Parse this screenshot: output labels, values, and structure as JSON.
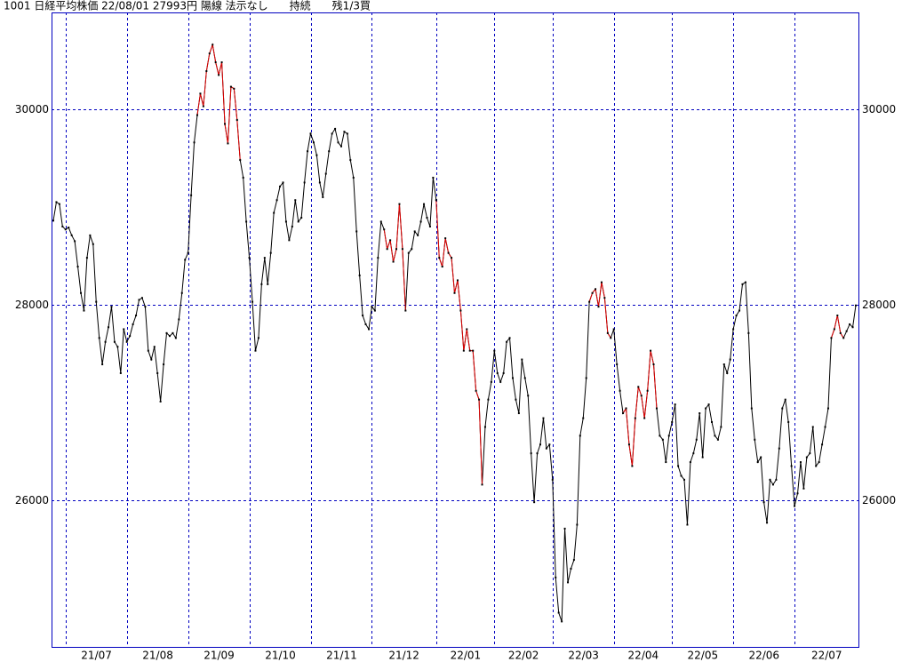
{
  "chart_data": {
    "type": "line",
    "title": "1001 日経平均株価 22/08/01 27993円 陽線 法示なし　　持続　　残1/3買",
    "ylim": [
      24500,
      30990
    ],
    "yticks": [
      26000,
      28000,
      30000
    ],
    "grid": true,
    "color": "#000000",
    "highlight_color": "#e00000",
    "highlight_ranges": [
      [
        47,
        61
      ],
      [
        108,
        115
      ],
      [
        125,
        140
      ],
      [
        175,
        182
      ],
      [
        186,
        197
      ],
      [
        254,
        258
      ]
    ],
    "xticks": [
      {
        "value": 4,
        "label": "21/07"
      },
      {
        "value": 24,
        "label": "21/08"
      },
      {
        "value": 44,
        "label": "21/09"
      },
      {
        "value": 64,
        "label": "21/10"
      },
      {
        "value": 84,
        "label": "21/11"
      },
      {
        "value": 104,
        "label": "21/12"
      },
      {
        "value": 125,
        "label": "22/01"
      },
      {
        "value": 144,
        "label": "22/02"
      },
      {
        "value": 163,
        "label": "22/03"
      },
      {
        "value": 183,
        "label": "22/04"
      },
      {
        "value": 202,
        "label": "22/05"
      },
      {
        "value": 222,
        "label": "22/06"
      },
      {
        "value": 242,
        "label": "22/07"
      }
    ],
    "values": [
      28860,
      29050,
      29030,
      28800,
      28770,
      28790,
      28710,
      28650,
      28390,
      28120,
      27940,
      28480,
      28710,
      28620,
      28030,
      27660,
      27390,
      27620,
      27770,
      27980,
      27620,
      27570,
      27300,
      27750,
      27620,
      27680,
      27800,
      27890,
      28050,
      28070,
      27980,
      27530,
      27440,
      27570,
      27300,
      27010,
      27390,
      27710,
      27680,
      27710,
      27660,
      27850,
      28120,
      28460,
      28530,
      29120,
      29660,
      29940,
      30160,
      30030,
      30390,
      30570,
      30660,
      30480,
      30350,
      30480,
      29850,
      29650,
      30230,
      30210,
      29890,
      29480,
      29300,
      28850,
      28480,
      28030,
      27530,
      27660,
      28210,
      28480,
      28210,
      28530,
      28940,
      29070,
      29210,
      29250,
      28850,
      28660,
      28800,
      29070,
      28850,
      28890,
      29250,
      29570,
      29750,
      29660,
      29530,
      29250,
      29100,
      29340,
      29570,
      29750,
      29800,
      29660,
      29620,
      29770,
      29750,
      29480,
      29300,
      28750,
      28300,
      27890,
      27800,
      27750,
      27980,
      27940,
      28480,
      28850,
      28770,
      28570,
      28660,
      28440,
      28570,
      29030,
      28570,
      27940,
      28530,
      28570,
      28750,
      28710,
      28850,
      29030,
      28890,
      28800,
      29300,
      29070,
      28480,
      28390,
      28680,
      28530,
      28480,
      28120,
      28250,
      27940,
      27530,
      27750,
      27530,
      27530,
      27120,
      27030,
      26160,
      26750,
      27030,
      27210,
      27530,
      27300,
      27210,
      27300,
      27620,
      27660,
      27250,
      27030,
      26890,
      27440,
      27250,
      27070,
      26480,
      25980,
      26480,
      26570,
      26840,
      26530,
      26570,
      26210,
      25210,
      24850,
      24760,
      25710,
      25160,
      25300,
      25390,
      25750,
      26660,
      26840,
      27250,
      28030,
      28120,
      28160,
      27980,
      28230,
      28070,
      27710,
      27660,
      27750,
      27390,
      27120,
      26890,
      26940,
      26570,
      26350,
      26840,
      27160,
      27070,
      26840,
      27120,
      27530,
      27390,
      26940,
      26660,
      26620,
      26390,
      26660,
      26800,
      26980,
      26350,
      26250,
      26210,
      25750,
      26390,
      26480,
      26620,
      26890,
      26440,
      26940,
      26980,
      26800,
      26660,
      26620,
      26750,
      27390,
      27300,
      27440,
      27750,
      27890,
      27940,
      28210,
      28230,
      27710,
      26940,
      26620,
      26390,
      26440,
      25980,
      25770,
      26210,
      26160,
      26210,
      26530,
      26940,
      27030,
      26800,
      26350,
      25940,
      26070,
      26390,
      26120,
      26440,
      26480,
      26750,
      26350,
      26390,
      26570,
      26750,
      26940,
      27660,
      27750,
      27890,
      27710,
      27660,
      27730,
      27800,
      27770,
      27993
    ]
  }
}
